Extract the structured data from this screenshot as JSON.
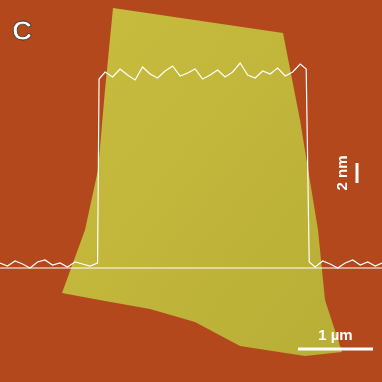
{
  "panel_label": "C",
  "chart_data": {
    "type": "line",
    "x": [
      0,
      0.1,
      0.2,
      0.3,
      0.4,
      0.5,
      0.6,
      0.7,
      0.8,
      0.9,
      1.0,
      1.1,
      1.2,
      1.3,
      1.32,
      1.4,
      1.5,
      1.6,
      1.7,
      1.8,
      1.9,
      2.0,
      2.1,
      2.2,
      2.3,
      2.4,
      2.5,
      2.6,
      2.7,
      2.8,
      2.9,
      3.0,
      3.1,
      3.2,
      3.3,
      3.4,
      3.5,
      3.6,
      3.7,
      3.8,
      3.9,
      4.0,
      4.08,
      4.12,
      4.2,
      4.3,
      4.4,
      4.5,
      4.6,
      4.7,
      4.8,
      4.9,
      5.0,
      5.09
    ],
    "values": [
      0.2,
      -0.1,
      0.4,
      0.1,
      -0.3,
      0.3,
      0.5,
      0.0,
      0.2,
      -0.2,
      0.3,
      0.1,
      -0.1,
      0.2,
      18.6,
      19.3,
      18.8,
      19.6,
      19.0,
      18.5,
      19.8,
      19.1,
      18.7,
      19.4,
      19.9,
      18.9,
      19.2,
      19.6,
      18.6,
      19.0,
      19.5,
      18.8,
      19.3,
      20.2,
      19.0,
      18.7,
      19.4,
      19.1,
      19.7,
      18.9,
      19.3,
      20.1,
      19.6,
      0.3,
      -0.2,
      0.4,
      0.1,
      -0.3,
      0.2,
      0.5,
      0.0,
      0.3,
      -0.1,
      0.2
    ],
    "color": "#ffffff",
    "xlim": [
      0,
      5.09
    ],
    "ylim": [
      -11.7,
      26.5
    ],
    "grid": false,
    "tick_labels": false
  },
  "x_scale_bar": {
    "label": "1 µm",
    "value": 1
  },
  "y_scale_bar": {
    "label": "2 nm",
    "value": 2
  }
}
